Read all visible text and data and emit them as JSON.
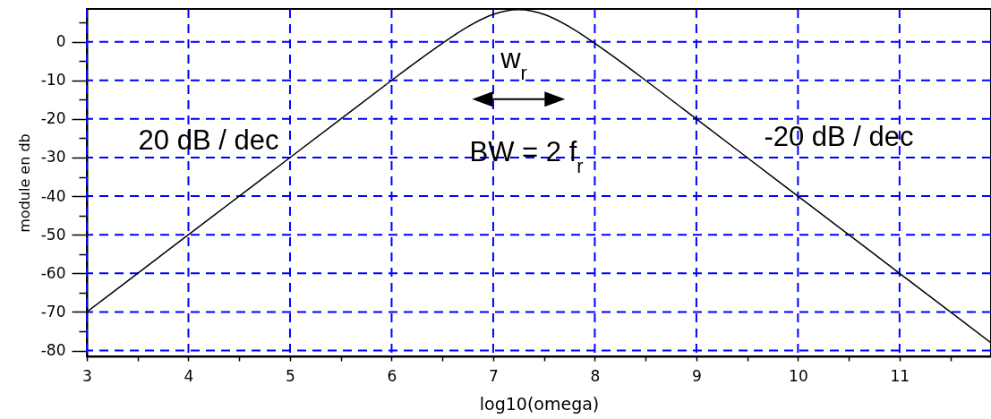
{
  "chart_data": {
    "type": "line",
    "xlabel": "log10(omega)",
    "ylabel": "module en db",
    "x": [
      3,
      3.5,
      4,
      4.5,
      5,
      5.5,
      6,
      6.25,
      6.5,
      6.75,
      7,
      7.125,
      7.25,
      7.375,
      7.5,
      7.75,
      8,
      8.25,
      8.5,
      9,
      9.5,
      10,
      10.5,
      11,
      11.5,
      11.9
    ],
    "series": [
      {
        "color": "#000000",
        "values": [
          -70,
          -60,
          -50,
          -40,
          -30,
          -20,
          -10,
          -5.1,
          -0.4,
          3.9,
          7.1,
          8,
          8.3,
          8,
          7.1,
          3.9,
          -0.4,
          -5.1,
          -10,
          -20,
          -30,
          -40,
          -50,
          -60,
          -70,
          -78
        ]
      }
    ],
    "xlim": [
      3,
      11.9
    ],
    "xticks": [
      3,
      {
        "value": 3.5,
        "label": null
      },
      4,
      {
        "value": 4.5,
        "label": null
      },
      5,
      {
        "value": 5.5,
        "label": null
      },
      6,
      {
        "value": 6.5,
        "label": null
      },
      7,
      {
        "value": 7.5,
        "label": null
      },
      8,
      {
        "value": 8.5,
        "label": null
      },
      9,
      {
        "value": 9.5,
        "label": null
      },
      10,
      {
        "value": 10.5,
        "label": null
      },
      11,
      {
        "value": 11.5,
        "label": null
      }
    ],
    "ylim": [
      -81.5,
      8.5
    ],
    "yticks": [
      {
        "value": 5,
        "label": null
      },
      0,
      {
        "value": -5,
        "label": null
      },
      -10,
      {
        "value": -15,
        "label": null
      },
      -20,
      {
        "value": -25,
        "label": null
      },
      -30,
      {
        "value": -35,
        "label": null
      },
      -40,
      {
        "value": -45,
        "label": null
      },
      -50,
      {
        "value": -55,
        "label": null
      },
      -60,
      {
        "value": -65,
        "label": null
      },
      -70,
      {
        "value": -75,
        "label": null
      },
      -80
    ],
    "grid": true,
    "annotations": [
      "20 dB / dec",
      "w$_{r}$",
      "BW = 2 f$_{r}$",
      "-20 dB / dec"
    ]
  }
}
